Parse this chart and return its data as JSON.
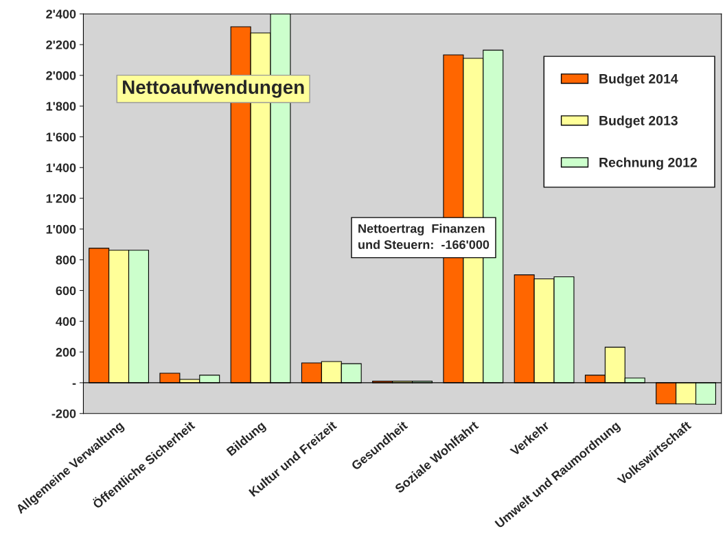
{
  "chart_data": {
    "type": "bar",
    "title": "Nettoaufwendungen",
    "categories": [
      "Allgemeine Verwaltung",
      "Öffentliche Sicherheit",
      "Bildung",
      "Kultur und Freizeit",
      "Gesundheit",
      "Soziale Wohlfahrt",
      "Verkehr",
      "Umwelt und Raumordnung",
      "Volkswirtschaft"
    ],
    "series": [
      {
        "name": "Budget 2014",
        "color": "#ff6600",
        "values": [
          875,
          62,
          2316,
          129,
          10,
          2133,
          702,
          49,
          -138
        ]
      },
      {
        "name": "Budget 2013",
        "color": "#ffff99",
        "values": [
          862,
          22,
          2276,
          138,
          10,
          2111,
          676,
          231,
          -138
        ]
      },
      {
        "name": "Rechnung 2012",
        "color": "#ccffcc",
        "values": [
          862,
          49,
          2400,
          124,
          10,
          2164,
          689,
          31,
          -140
        ]
      }
    ],
    "ylim": [
      -200,
      2400
    ],
    "yticks": [
      {
        "value": -200,
        "label": "-200"
      },
      {
        "value": 0,
        "label": "-"
      },
      200,
      400,
      600,
      800,
      {
        "value": 1000,
        "label": "1'000"
      },
      {
        "value": 1200,
        "label": "1'200"
      },
      {
        "value": 1400,
        "label": "1'400"
      },
      {
        "value": 1600,
        "label": "1'600"
      },
      {
        "value": 1800,
        "label": "1'800"
      },
      {
        "value": 2000,
        "label": "2'000"
      },
      {
        "value": 2200,
        "label": "2'200"
      },
      {
        "value": 2400,
        "label": "2'400"
      }
    ],
    "annotations": [
      "Nettoertrag  Finanzen\nund Steuern:  -166'000"
    ],
    "legend": "right"
  }
}
